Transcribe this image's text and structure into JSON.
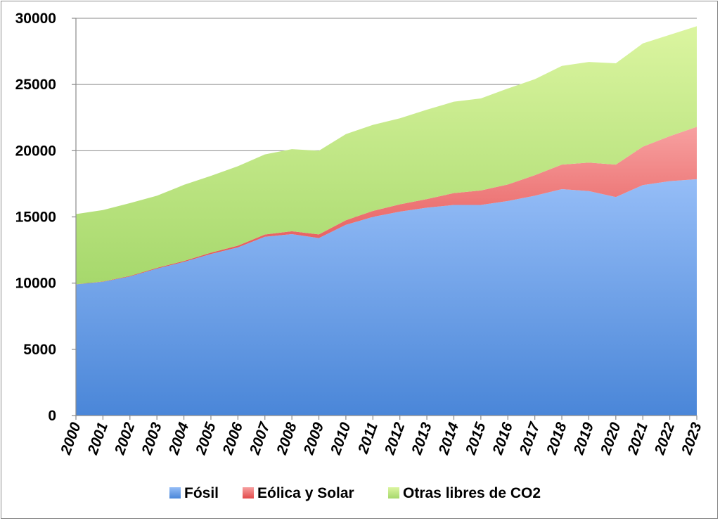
{
  "chart_data": {
    "type": "area",
    "stacked": true,
    "title": "",
    "xlabel": "",
    "ylabel": "",
    "ylim": [
      0,
      30000
    ],
    "y_ticks": [
      0,
      5000,
      10000,
      15000,
      20000,
      25000,
      30000
    ],
    "y_tick_labels": [
      "0",
      "5000",
      "10000",
      "15000",
      "20000",
      "25000",
      "30000"
    ],
    "grid": "horizontal",
    "legend_position": "bottom",
    "categories": [
      "2000",
      "2001",
      "2002",
      "2003",
      "2004",
      "2005",
      "2006",
      "2007",
      "2008",
      "2009",
      "2010",
      "2011",
      "2012",
      "2013",
      "2014",
      "2015",
      "2016",
      "2017",
      "2018",
      "2019",
      "2020",
      "2021",
      "2022",
      "2023"
    ],
    "series": [
      {
        "name": "Fósil",
        "color": "#4a86d8",
        "color_light": "#95bdf7",
        "values": [
          9900,
          10100,
          10500,
          11100,
          11600,
          12200,
          12700,
          13500,
          13700,
          13400,
          14400,
          15000,
          15400,
          15700,
          15900,
          15900,
          16200,
          16600,
          17100,
          16950,
          16500,
          17400,
          17700,
          17850
        ]
      },
      {
        "name": "Eólica y Solar",
        "color": "#e24a4a",
        "color_light": "#f7a0a0",
        "values": [
          10,
          20,
          40,
          50,
          70,
          100,
          130,
          170,
          220,
          280,
          350,
          450,
          550,
          650,
          900,
          1100,
          1250,
          1550,
          1850,
          2150,
          2450,
          2900,
          3400,
          3950
        ]
      },
      {
        "name": "Otras libres de CO2",
        "color": "#a6d86c",
        "color_light": "#dbf5a0",
        "values": [
          5300,
          5400,
          5500,
          5450,
          5750,
          5800,
          6000,
          6050,
          6200,
          6320,
          6500,
          6500,
          6500,
          6750,
          6900,
          6950,
          7250,
          7250,
          7450,
          7600,
          7650,
          7800,
          7650,
          7600
        ]
      }
    ]
  }
}
